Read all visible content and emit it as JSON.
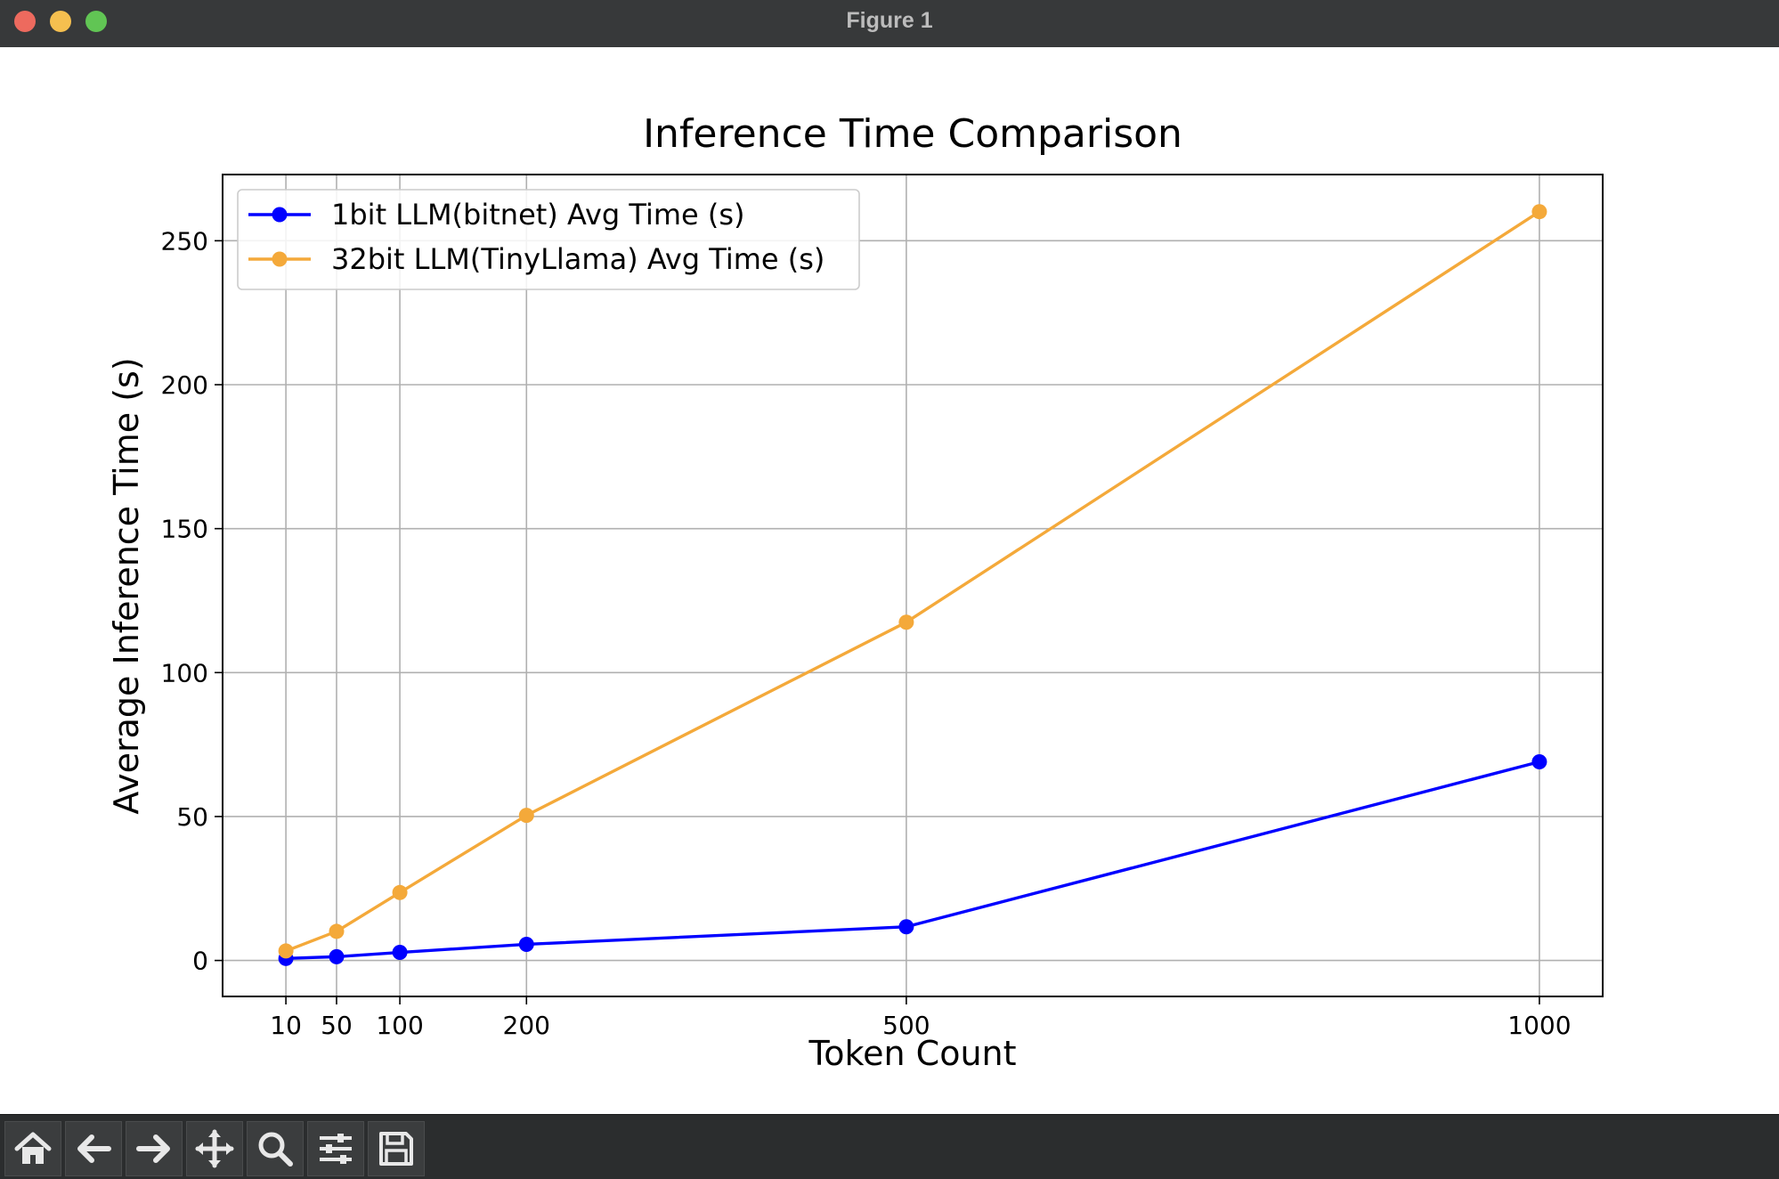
{
  "window": {
    "title": "Figure 1"
  },
  "toolbar": {
    "buttons": [
      {
        "icon": "home-icon"
      },
      {
        "icon": "back-arrow-icon"
      },
      {
        "icon": "forward-arrow-icon"
      },
      {
        "icon": "pan-icon"
      },
      {
        "icon": "zoom-icon"
      },
      {
        "icon": "configure-subplots-icon"
      },
      {
        "icon": "save-icon"
      }
    ]
  },
  "chart_data": {
    "type": "line",
    "title": "Inference Time Comparison",
    "xlabel": "Token Count",
    "ylabel": "Average Inference Time (s)",
    "x": [
      10,
      50,
      100,
      200,
      500,
      1000
    ],
    "xticks": [
      "10",
      "50",
      "100",
      "200",
      "500",
      "1000"
    ],
    "yticks": [
      "0",
      "50",
      "100",
      "150",
      "200",
      "250"
    ],
    "xlim": [
      -40,
      1050
    ],
    "ylim": [
      -12.5,
      273
    ],
    "grid": true,
    "legend_position": "upper left",
    "series": [
      {
        "name": "1bit LLM(bitnet) Avg Time (s)",
        "color": "#0000ff",
        "marker": "circle",
        "values": [
          0.7,
          1.3,
          2.8,
          5.6,
          11.7,
          69.0
        ]
      },
      {
        "name": "32bit LLM(TinyLlama) Avg Time (s)",
        "color": "#f4a93a",
        "marker": "circle",
        "values": [
          3.3,
          10.1,
          23.6,
          50.4,
          117.5,
          260.1
        ]
      }
    ]
  }
}
